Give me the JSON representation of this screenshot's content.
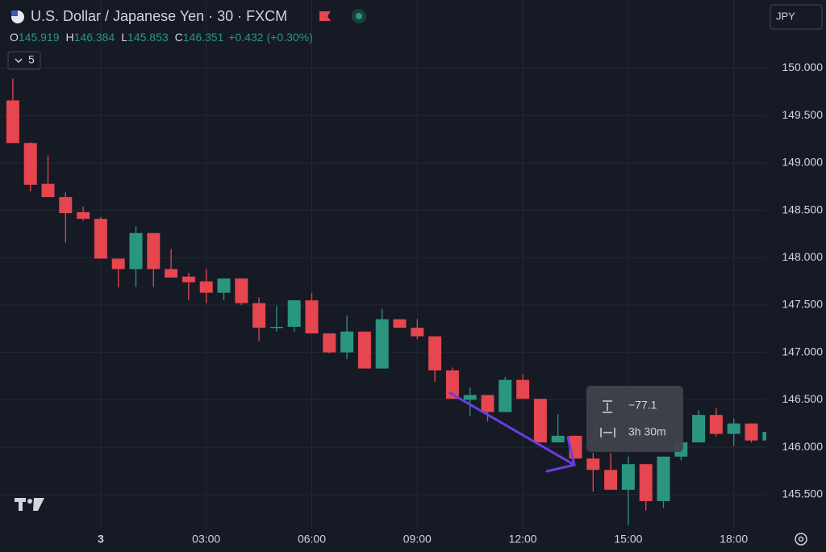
{
  "chart_data": {
    "type": "candlestick",
    "title": "U.S. Dollar / Japanese Yen · 30 · FXCM",
    "ohlc_legend": [
      {
        "label": "O",
        "value": 145.919
      },
      {
        "label": "H",
        "value": 146.384
      },
      {
        "label": "L",
        "value": 145.853
      },
      {
        "label": "C",
        "value": 146.351
      }
    ],
    "change": {
      "value": 0.432,
      "label": "+0.432"
    },
    "change_pct": {
      "value": 0.3,
      "label": "(+0.30%)"
    },
    "indicator_count": 5,
    "currency": "JPY",
    "measure": {
      "price_change": {
        "value": -77.1,
        "label": "−77.1"
      },
      "duration": "3h 30m"
    },
    "categories": [
      null,
      null,
      null,
      null,
      null,
      "3",
      null,
      null,
      null,
      null,
      null,
      "03:00",
      null,
      null,
      null,
      null,
      null,
      "06:00",
      null,
      null,
      null,
      null,
      null,
      "09:00",
      null,
      null,
      null,
      null,
      null,
      "12:00",
      null,
      null,
      null,
      null,
      null,
      "15:00",
      null,
      null,
      null,
      null,
      null,
      "18:00",
      null,
      null
    ],
    "open": [
      149.66,
      149.21,
      148.78,
      148.64,
      148.48,
      148.41,
      147.99,
      147.88,
      148.26,
      147.88,
      147.8,
      147.75,
      147.63,
      147.78,
      147.52,
      147.26,
      147.27,
      147.55,
      147.2,
      147.0,
      147.22,
      146.83,
      147.35,
      147.26,
      147.17,
      146.81,
      146.5,
      146.55,
      146.37,
      146.71,
      146.51,
      146.05,
      146.12,
      145.88,
      145.76,
      145.55,
      145.82,
      145.43,
      145.9,
      146.05,
      146.34,
      146.14,
      146.25,
      146.07
    ],
    "high": [
      149.89,
      149.22,
      149.08,
      148.69,
      148.54,
      148.43,
      147.99,
      148.33,
      148.26,
      148.09,
      147.84,
      147.88,
      147.78,
      147.78,
      147.58,
      147.49,
      147.55,
      147.63,
      147.2,
      147.39,
      147.22,
      147.46,
      147.35,
      147.35,
      147.17,
      146.84,
      146.63,
      146.55,
      146.74,
      146.77,
      146.51,
      146.35,
      146.12,
      145.94,
      145.94,
      145.9,
      145.82,
      145.9,
      146.05,
      146.39,
      146.41,
      146.3,
      146.25,
      146.16
    ],
    "low": [
      149.21,
      148.7,
      148.64,
      148.16,
      148.39,
      147.99,
      147.69,
      147.69,
      147.69,
      147.79,
      147.55,
      147.52,
      147.55,
      147.5,
      147.12,
      147.22,
      147.22,
      147.2,
      146.99,
      146.93,
      146.83,
      146.83,
      147.26,
      147.14,
      146.69,
      146.51,
      146.33,
      146.27,
      146.37,
      146.51,
      146.05,
      146.05,
      145.88,
      145.53,
      145.55,
      145.18,
      145.33,
      145.36,
      145.86,
      146.05,
      146.11,
      146.01,
      146.05,
      146.07
    ],
    "close": [
      149.21,
      148.77,
      148.64,
      148.47,
      148.41,
      147.99,
      147.88,
      148.26,
      147.88,
      147.79,
      147.74,
      147.63,
      147.78,
      147.52,
      147.26,
      147.27,
      147.55,
      147.2,
      147.0,
      147.22,
      146.83,
      147.35,
      147.26,
      147.17,
      146.81,
      146.51,
      146.55,
      146.37,
      146.71,
      146.51,
      146.05,
      146.12,
      145.88,
      145.76,
      145.55,
      145.82,
      145.43,
      145.9,
      146.05,
      146.34,
      146.14,
      146.25,
      146.07,
      146.16
    ],
    "up_color": "#2a9680",
    "down_color": "#e5464f",
    "ylim": [
      145.14,
      150.72
    ],
    "yticks": [
      {
        "value": 145.5,
        "label": "145.500"
      },
      {
        "value": 146.0,
        "label": "146.000"
      },
      {
        "value": 146.5,
        "label": "146.500"
      },
      {
        "value": 147.0,
        "label": "147.000"
      },
      {
        "value": 147.5,
        "label": "147.500"
      },
      {
        "value": 148.0,
        "label": "148.000"
      },
      {
        "value": 148.5,
        "label": "148.500"
      },
      {
        "value": 149.0,
        "label": "149.000"
      },
      {
        "value": 149.5,
        "label": "149.500"
      },
      {
        "value": 150.0,
        "label": "150.000"
      }
    ],
    "grid": true
  }
}
